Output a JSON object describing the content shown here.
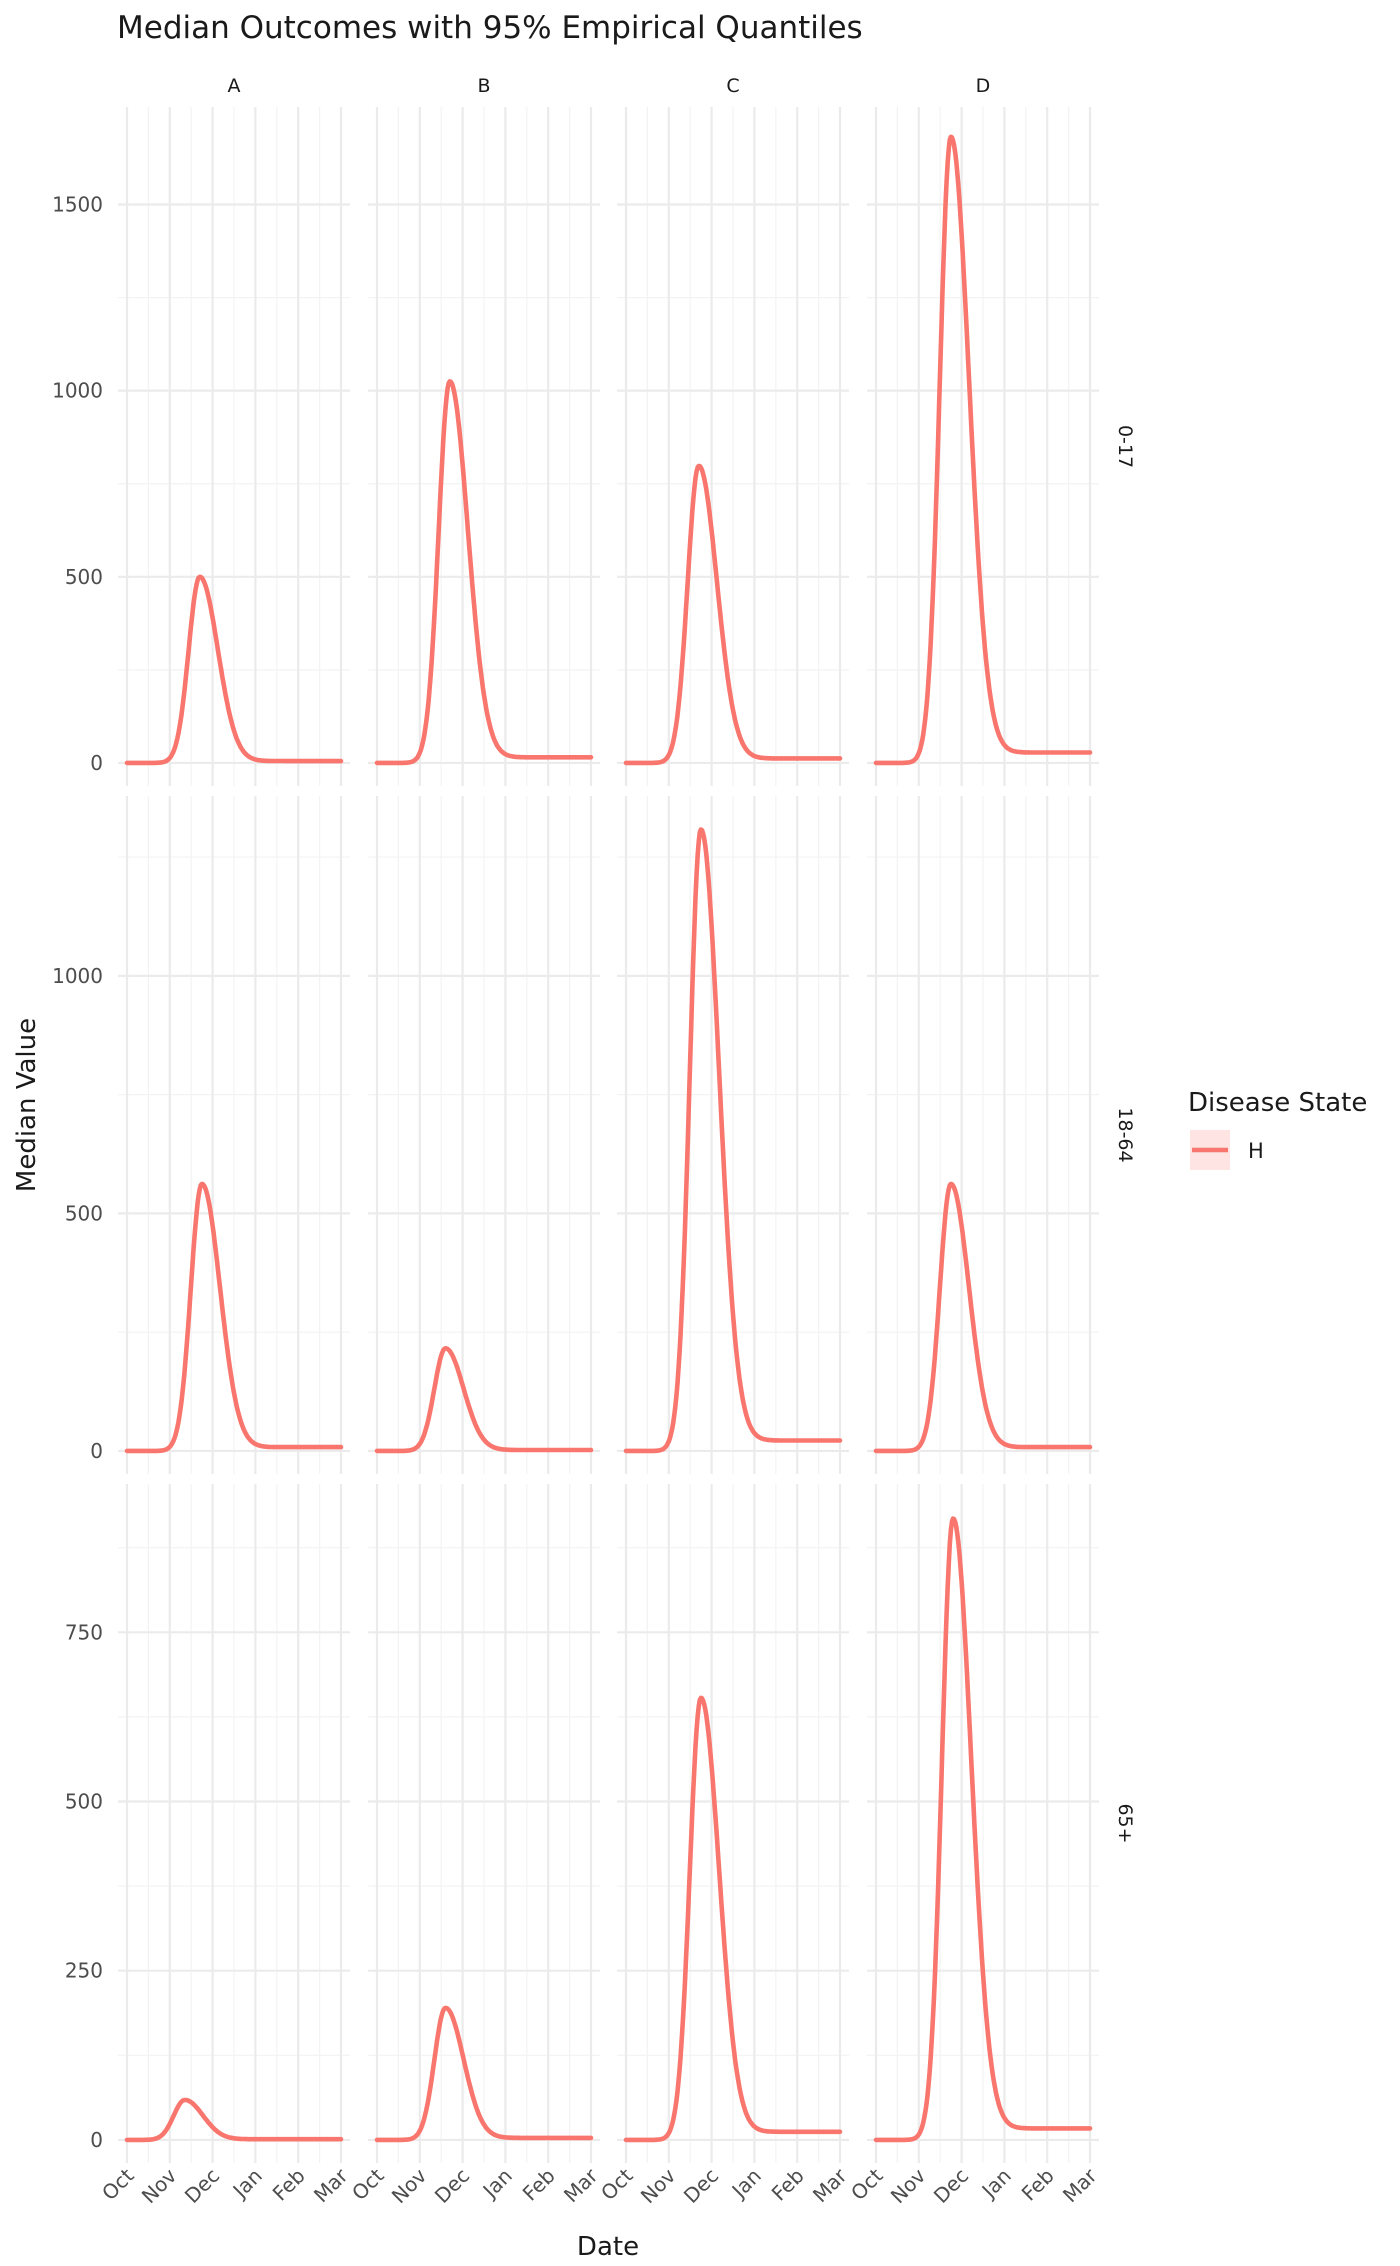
{
  "chart_data": {
    "type": "line",
    "title": "Median Outcomes with 95% Empirical Quantiles",
    "xlabel": "Date",
    "ylabel": "Median Value",
    "x_ticks": [
      "Oct",
      "Nov",
      "Dec",
      "Jan",
      "Feb",
      "Mar"
    ],
    "x_range": [
      "Oct",
      "Mar"
    ],
    "columns": [
      "A",
      "B",
      "C",
      "D"
    ],
    "rows": [
      {
        "label": "0-17",
        "y_range": [
          0,
          1700
        ],
        "y_ticks": [
          0,
          500,
          1000,
          1500
        ],
        "panels": [
          {
            "column": "A",
            "peak_value": 505,
            "peak_month": 1.7,
            "end_value": 5
          },
          {
            "column": "B",
            "peak_value": 1040,
            "peak_month": 1.7,
            "end_value": 15
          },
          {
            "column": "C",
            "peak_value": 810,
            "peak_month": 1.7,
            "end_value": 12
          },
          {
            "column": "D",
            "peak_value": 1710,
            "peak_month": 1.75,
            "end_value": 28
          }
        ]
      },
      {
        "label": "18-64",
        "y_range": [
          0,
          1330
        ],
        "y_ticks": [
          0,
          500,
          1000
        ],
        "panels": [
          {
            "column": "A",
            "peak_value": 570,
            "peak_month": 1.75,
            "end_value": 8
          },
          {
            "column": "B",
            "peak_value": 218,
            "peak_month": 1.6,
            "end_value": 2
          },
          {
            "column": "C",
            "peak_value": 1330,
            "peak_month": 1.75,
            "end_value": 22
          },
          {
            "column": "D",
            "peak_value": 570,
            "peak_month": 1.75,
            "end_value": 8
          }
        ]
      },
      {
        "label": "65+",
        "y_range": [
          0,
          935
        ],
        "y_ticks": [
          0,
          250,
          500,
          750
        ],
        "panels": [
          {
            "column": "A",
            "peak_value": 60,
            "peak_month": 1.35,
            "end_value": 1
          },
          {
            "column": "B",
            "peak_value": 198,
            "peak_month": 1.6,
            "end_value": 3
          },
          {
            "column": "C",
            "peak_value": 665,
            "peak_month": 1.75,
            "end_value": 12
          },
          {
            "column": "D",
            "peak_value": 935,
            "peak_month": 1.8,
            "end_value": 17
          }
        ]
      }
    ],
    "legend": {
      "title": "Disease State",
      "placement": "right",
      "entries": [
        {
          "label": "H",
          "color": "#F8766D"
        }
      ]
    },
    "grid": true
  }
}
